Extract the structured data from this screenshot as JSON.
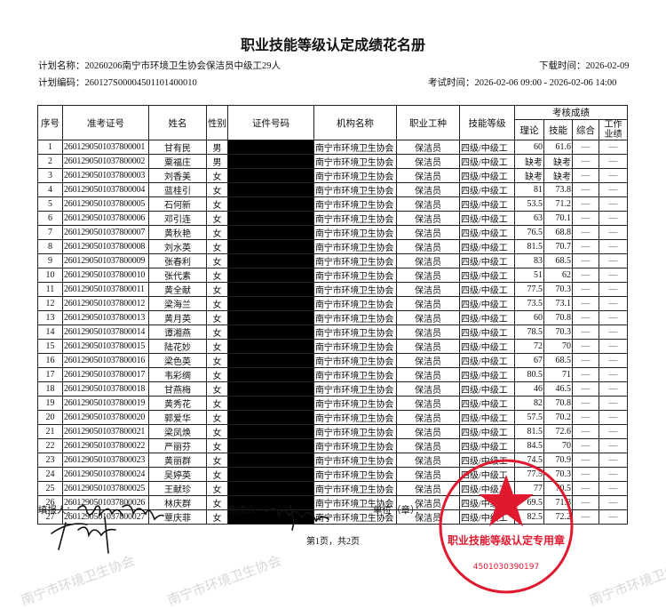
{
  "title": "职业技能等级认定成绩花名册",
  "plan_name_label": "计划名称：",
  "plan_name": "20260206南宁市环境卫生协会保洁员中级工29人",
  "download_label": "下载时间：",
  "download_time": "2026-02-09",
  "plan_code_label": "计划编码：",
  "plan_code": "260127S00004501101400010",
  "exam_label": "考试时间：",
  "exam_time": "2026-02-06 09:00 - 2026-02-06 14:00",
  "headers": {
    "no": "序号",
    "exam_id": "准考证号",
    "name": "姓名",
    "gender": "性别",
    "id_no": "证件号码",
    "org": "机构名称",
    "job": "职业工种",
    "level": "技能等级",
    "scores": "考核成绩",
    "theory": "理论",
    "skill": "技能",
    "composite": "综合",
    "work": "工作业绩"
  },
  "rows": [
    [
      "1",
      "260129050103780000​1",
      "甘有民",
      "男",
      "60",
      "61.6"
    ],
    [
      "2",
      "2601290501037800002",
      "粟福庄",
      "男",
      "缺考",
      "缺考"
    ],
    [
      "3",
      "2601290501037800003",
      "刘香美",
      "女",
      "缺考",
      "缺考"
    ],
    [
      "4",
      "2601290501037800004",
      "蓝桂引",
      "女",
      "81",
      "73.8"
    ],
    [
      "5",
      "2601290501037800005",
      "石何新",
      "女",
      "53.5",
      "71.2"
    ],
    [
      "6",
      "2601290501037800006",
      "邓引连",
      "女",
      "63",
      "70.1"
    ],
    [
      "7",
      "2601290501037800007",
      "黄秋艳",
      "女",
      "76.5",
      "68.8"
    ],
    [
      "8",
      "2601290501037800008",
      "刘水英",
      "女",
      "81.5",
      "70.7"
    ],
    [
      "9",
      "2601290501037800009",
      "张春利",
      "女",
      "83",
      "68.5"
    ],
    [
      "10",
      "2601290501037800010",
      "张代素",
      "女",
      "51",
      "62"
    ],
    [
      "11",
      "2601290501037800011",
      "黄全献",
      "女",
      "77.5",
      "70.3"
    ],
    [
      "12",
      "2601290501037800012",
      "梁海兰",
      "女",
      "73.5",
      "73.1"
    ],
    [
      "13",
      "2601290501037800013",
      "黄月英",
      "女",
      "60",
      "70.8"
    ],
    [
      "14",
      "2601290501037800014",
      "谭湘燕",
      "女",
      "78.5",
      "70.3"
    ],
    [
      "15",
      "2601290501037800015",
      "陆花妙",
      "女",
      "72",
      "70"
    ],
    [
      "16",
      "2601290501037800016",
      "梁色英",
      "女",
      "67",
      "68.5"
    ],
    [
      "17",
      "2601290501037800017",
      "韦彩绸",
      "女",
      "80.5",
      "71"
    ],
    [
      "18",
      "2601290501037800018",
      "甘燕梅",
      "女",
      "46",
      "46.5"
    ],
    [
      "19",
      "2601290501037800019",
      "黄秀花",
      "女",
      "82",
      "70.8"
    ],
    [
      "20",
      "2601290501037800020",
      "郭爱华",
      "女",
      "57.5",
      "70.2"
    ],
    [
      "21",
      "2601290501037800021",
      "梁凤焕",
      "女",
      "81.5",
      "72.6"
    ],
    [
      "22",
      "2601290501037800022",
      "严丽芬",
      "女",
      "84.5",
      "70"
    ],
    [
      "23",
      "2601290501037800023",
      "黄丽群",
      "女",
      "74.5",
      "70.9"
    ],
    [
      "24",
      "2601290501037800024",
      "吴婷英",
      "女",
      "77.5",
      "70.3"
    ],
    [
      "25",
      "2601290501037800025",
      "王献珍",
      "女",
      "77",
      "70.5"
    ],
    [
      "26",
      "2601290501037800026",
      "林庆群",
      "女",
      "69.5",
      "71.8"
    ],
    [
      "27",
      "2601290501037800027",
      "覃庆菲",
      "女",
      "82.5",
      "72.2"
    ]
  ],
  "org_value": "南宁市环境卫生协会",
  "job_value": "保洁员",
  "level_value": "四级/中级工",
  "dash": "—",
  "footer": {
    "filler_label": "填报人：",
    "leader_label": "负责人：",
    "unit_label": "单位（章）：",
    "page": "第1页，共2页"
  },
  "stamp": {
    "text": "职业技能等级认定专用章",
    "number": "4501030390197",
    "color": "#e0192f"
  },
  "watermark": "南宁市环境卫生协会"
}
